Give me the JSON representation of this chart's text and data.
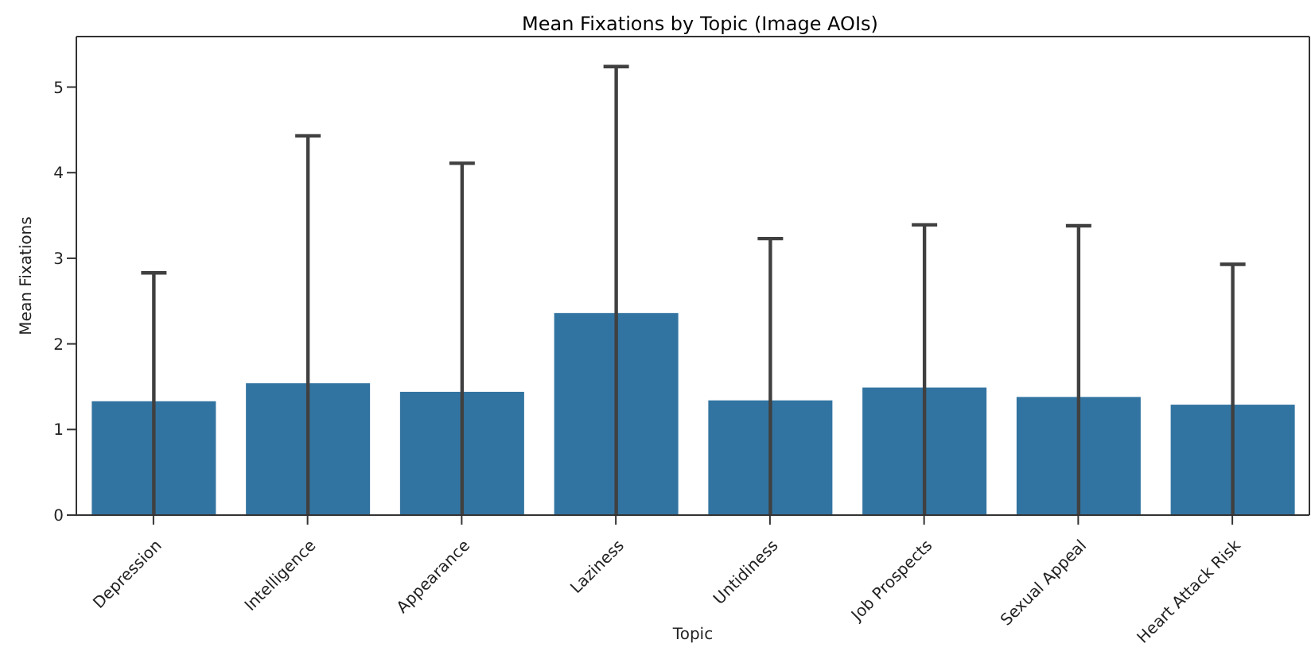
{
  "chart_data": {
    "type": "bar",
    "title": "Mean Fixations by Topic (Image AOIs)",
    "xlabel": "Topic",
    "ylabel": "Mean Fixations",
    "categories": [
      "Depression",
      "Intelligence",
      "Appearance",
      "Laziness",
      "Untidiness",
      "Job Prospects",
      "Sexual Appeal",
      "Heart Attack Risk"
    ],
    "values": [
      1.33,
      1.54,
      1.44,
      2.36,
      1.34,
      1.49,
      1.38,
      1.29
    ],
    "errors": [
      [
        0,
        2.83
      ],
      [
        0,
        4.43
      ],
      [
        0,
        4.11
      ],
      [
        0,
        5.24
      ],
      [
        0,
        3.23
      ],
      [
        0,
        3.39
      ],
      [
        0,
        3.38
      ],
      [
        0,
        2.93
      ]
    ],
    "color": "#3274a1",
    "ylim": [
      0,
      5.59
    ],
    "yticks": [
      0,
      1,
      2,
      3,
      4,
      5
    ],
    "grid": false,
    "legend": false
  }
}
